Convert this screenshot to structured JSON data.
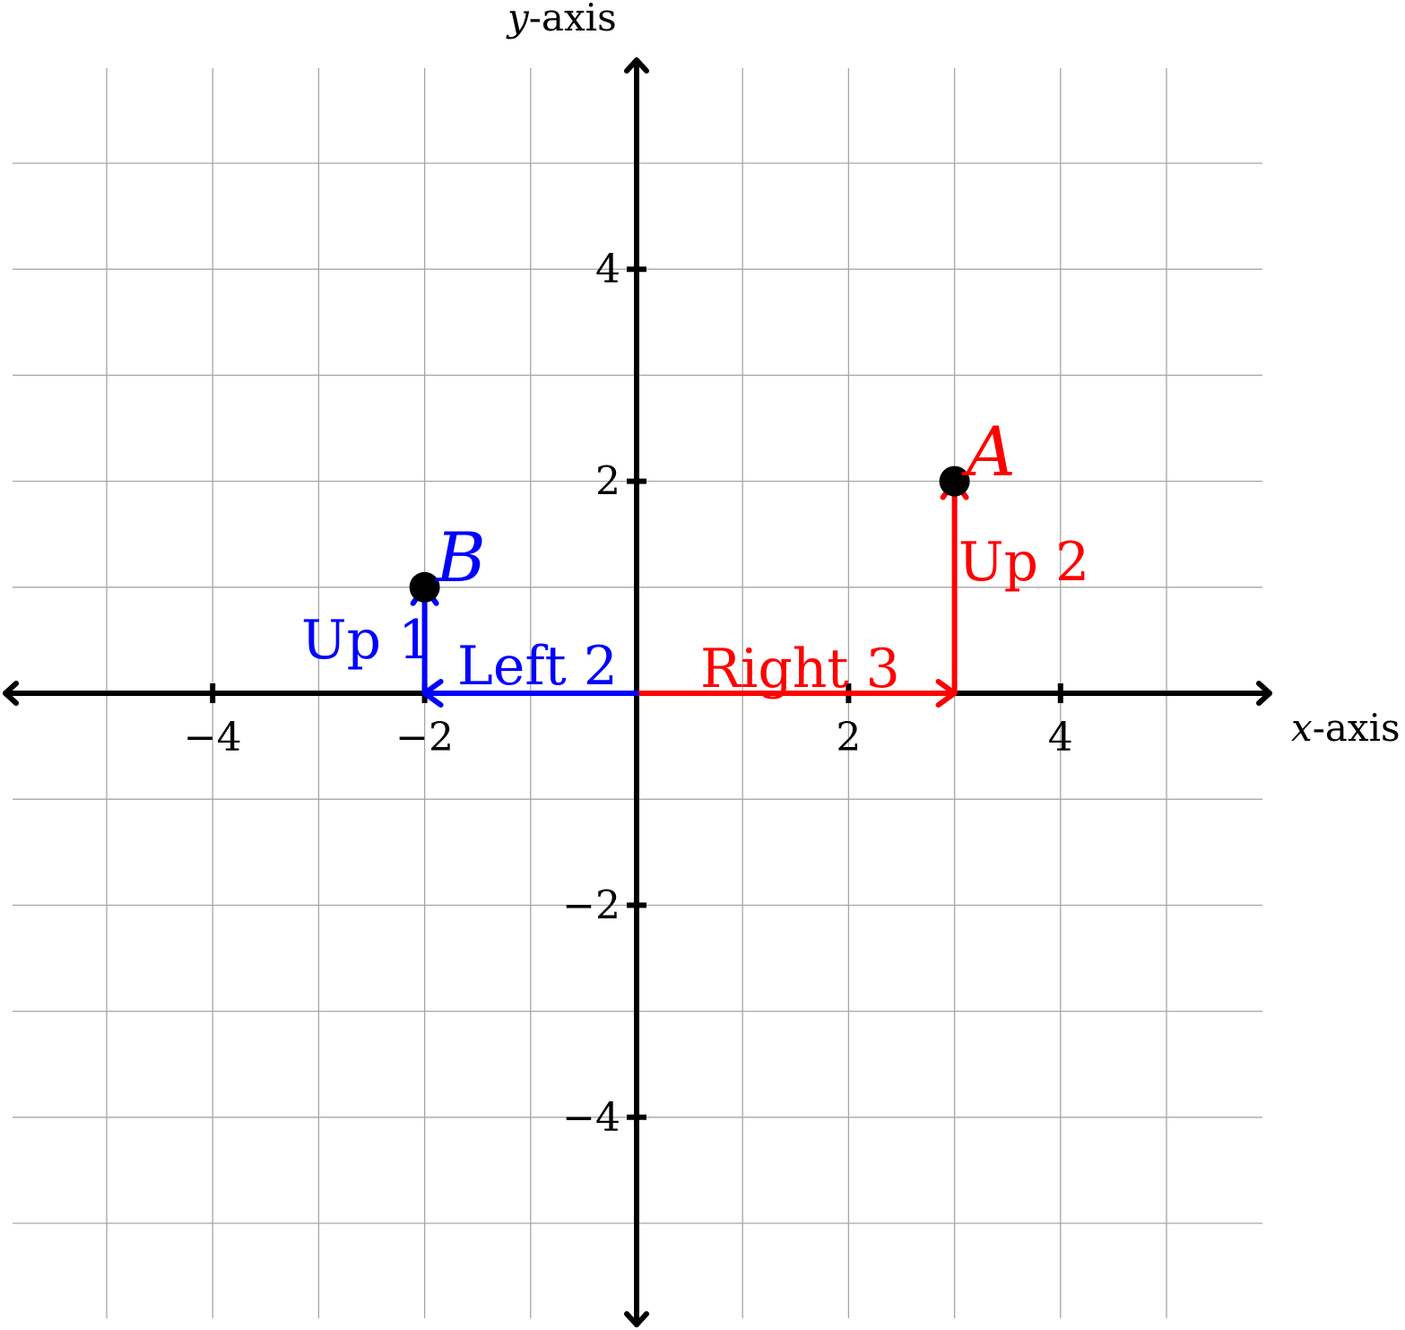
{
  "axes": {
    "x_title_var": "x",
    "x_title_rest": "-axis",
    "y_title_var": "y",
    "y_title_rest": "-axis",
    "x_ticks": [
      {
        "value": -4,
        "label": "−4"
      },
      {
        "value": -2,
        "label": "−2"
      },
      {
        "value": 2,
        "label": "2"
      },
      {
        "value": 4,
        "label": "4"
      }
    ],
    "y_ticks": [
      {
        "value": 4,
        "label": "4"
      },
      {
        "value": 2,
        "label": "2"
      },
      {
        "value": -2,
        "label": "−2"
      },
      {
        "value": -4,
        "label": "−4"
      }
    ],
    "grid": true,
    "grid_range": [
      -6,
      6
    ]
  },
  "points": [
    {
      "id": "A",
      "label": "A",
      "x": 3,
      "y": 2,
      "color": "#ff0000"
    },
    {
      "id": "B",
      "label": "B",
      "x": -2,
      "y": 1,
      "color": "#0000ff"
    }
  ],
  "moves": [
    {
      "id": "right-3",
      "label": "Right 3",
      "from": [
        0,
        0
      ],
      "to": [
        3,
        0
      ],
      "color": "#ff0000"
    },
    {
      "id": "up-2",
      "label": "Up 2",
      "from": [
        3,
        0
      ],
      "to": [
        3,
        2
      ],
      "color": "#ff0000"
    },
    {
      "id": "left-2",
      "label": "Left 2",
      "from": [
        0,
        0
      ],
      "to": [
        -2,
        0
      ],
      "color": "#0000ff"
    },
    {
      "id": "up-1",
      "label": "Up 1",
      "from": [
        -2,
        0
      ],
      "to": [
        -2,
        1
      ],
      "color": "#0000ff"
    }
  ]
}
